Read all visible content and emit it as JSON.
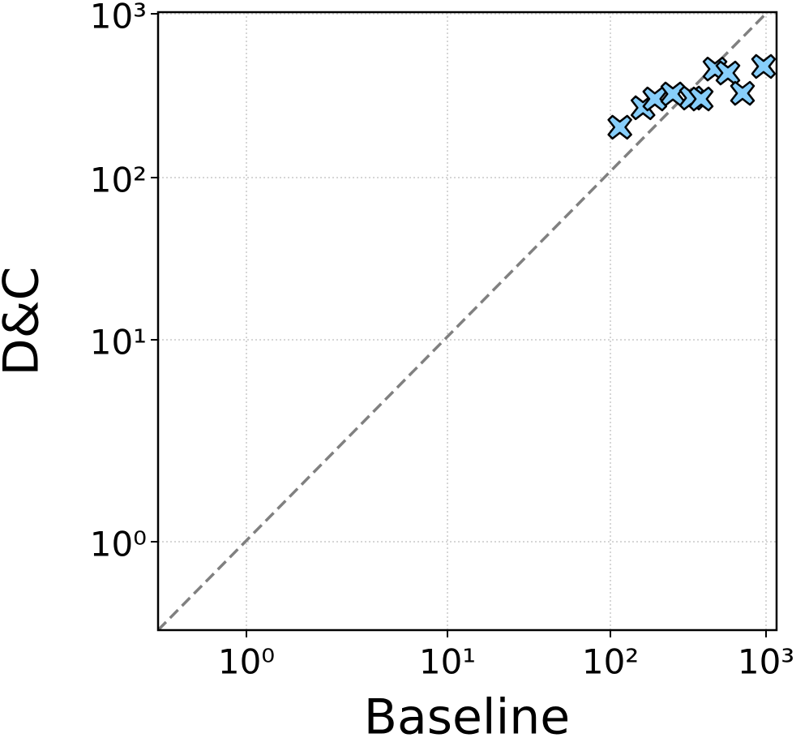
{
  "chart_data": {
    "type": "scatter",
    "xlabel": "Baseline",
    "ylabel": "D&C",
    "xscale": "log",
    "yscale": "log",
    "grid": true,
    "marker": "X",
    "color": "#87cefa",
    "edgecolor": "#000000",
    "reference_line": "y=x",
    "reference_color": "#808080",
    "xlim": [
      0.36,
      1170
    ],
    "ylim": [
      0.36,
      1020
    ],
    "xticks": [
      {
        "value": 1,
        "label": "10⁰"
      },
      {
        "value": 10,
        "label": "10¹"
      },
      {
        "value": 100,
        "label": "10²"
      },
      {
        "value": 1000,
        "label": "10³"
      }
    ],
    "yticks": [
      {
        "value": 1,
        "label": "10⁰"
      },
      {
        "value": 10,
        "label": "10¹"
      },
      {
        "value": 100,
        "label": "10²"
      },
      {
        "value": 1000,
        "label": "10³"
      }
    ],
    "x": [
      115,
      162,
      193,
      252,
      332,
      383,
      470,
      569,
      706,
      964
    ],
    "values": [
      203,
      267,
      302,
      324,
      306,
      302,
      460,
      435,
      327,
      477
    ]
  }
}
